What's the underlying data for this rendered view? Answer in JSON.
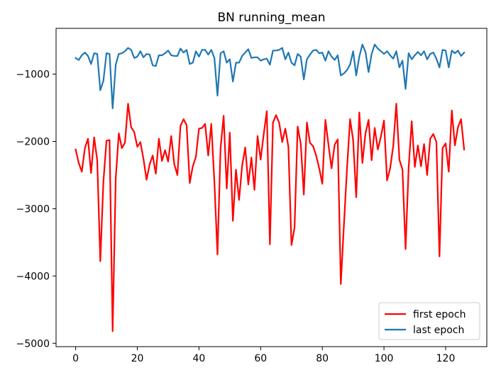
{
  "chart_data": {
    "type": "line",
    "title": "BN running_mean",
    "xlabel": "",
    "ylabel": "",
    "xlim": [
      -6.35,
      133.35
    ],
    "ylim": [
      -5050,
      -320
    ],
    "xticks": [
      0,
      20,
      40,
      60,
      80,
      100,
      120
    ],
    "xtick_labels": [
      "0",
      "20",
      "40",
      "60",
      "80",
      "100",
      "120"
    ],
    "yticks": [
      -5000,
      -4000,
      -3000,
      -2000,
      -1000
    ],
    "ytick_labels": [
      "−5000",
      "−4000",
      "−3000",
      "−2000",
      "−1000"
    ],
    "grid": false,
    "legend_position": "lower right",
    "series": [
      {
        "name": "first epoch",
        "color": "#ff0000",
        "values": [
          -2120,
          -2320,
          -2450,
          -2100,
          -1960,
          -2470,
          -1940,
          -2280,
          -3780,
          -2600,
          -1990,
          -1980,
          -4820,
          -2550,
          -1880,
          -2100,
          -2020,
          -1440,
          -1790,
          -1860,
          -2080,
          -2010,
          -2260,
          -2570,
          -2340,
          -2210,
          -2480,
          -1960,
          -2290,
          -2130,
          -2300,
          -1920,
          -2340,
          -2500,
          -1770,
          -1670,
          -1760,
          -2620,
          -2370,
          -2230,
          -1810,
          -1800,
          -1740,
          -2210,
          -1740,
          -2600,
          -3680,
          -2100,
          -1620,
          -2700,
          -1870,
          -3180,
          -2420,
          -2870,
          -2360,
          -2090,
          -2640,
          -2240,
          -2720,
          -1920,
          -2270,
          -1890,
          -1550,
          -3530,
          -1720,
          -1610,
          -1720,
          -2010,
          -1810,
          -2080,
          -3540,
          -3280,
          -1780,
          -2030,
          -2790,
          -1720,
          -2020,
          -2070,
          -2210,
          -2400,
          -2630,
          -1680,
          -2050,
          -2400,
          -2050,
          -1970,
          -4120,
          -3250,
          -2410,
          -1670,
          -1980,
          -2830,
          -1570,
          -2320,
          -1880,
          -1680,
          -2280,
          -1800,
          -2120,
          -1930,
          -1690,
          -2580,
          -2400,
          -2070,
          -1440,
          -2270,
          -2420,
          -3600,
          -2390,
          -1700,
          -2380,
          -2060,
          -2370,
          -2040,
          -2500,
          -1960,
          -1890,
          -2010,
          -3710,
          -2100,
          -2030,
          -2450,
          -1540,
          -2060,
          -1790,
          -1670,
          -2120
        ]
      },
      {
        "name": "last epoch",
        "color": "#1f77b4",
        "values": [
          -760,
          -790,
          -720,
          -680,
          -730,
          -850,
          -690,
          -700,
          -1240,
          -1100,
          -690,
          -700,
          -1510,
          -860,
          -700,
          -690,
          -660,
          -610,
          -640,
          -760,
          -740,
          -660,
          -750,
          -700,
          -710,
          -870,
          -880,
          -720,
          -720,
          -690,
          -650,
          -720,
          -730,
          -730,
          -620,
          -680,
          -640,
          -850,
          -830,
          -660,
          -740,
          -640,
          -640,
          -710,
          -640,
          -760,
          -1320,
          -690,
          -660,
          -830,
          -780,
          -1110,
          -830,
          -830,
          -730,
          -680,
          -630,
          -760,
          -750,
          -750,
          -800,
          -780,
          -770,
          -860,
          -650,
          -650,
          -640,
          -610,
          -780,
          -680,
          -830,
          -870,
          -700,
          -740,
          -1080,
          -780,
          -710,
          -650,
          -640,
          -690,
          -680,
          -800,
          -660,
          -740,
          -790,
          -720,
          -1020,
          -990,
          -940,
          -860,
          -660,
          -1020,
          -740,
          -560,
          -670,
          -970,
          -700,
          -560,
          -620,
          -660,
          -700,
          -660,
          -720,
          -770,
          -660,
          -900,
          -800,
          -1220,
          -690,
          -780,
          -720,
          -670,
          -720,
          -660,
          -780,
          -700,
          -680,
          -770,
          -900,
          -640,
          -650,
          -900,
          -650,
          -690,
          -650,
          -730,
          -680
        ]
      }
    ]
  }
}
